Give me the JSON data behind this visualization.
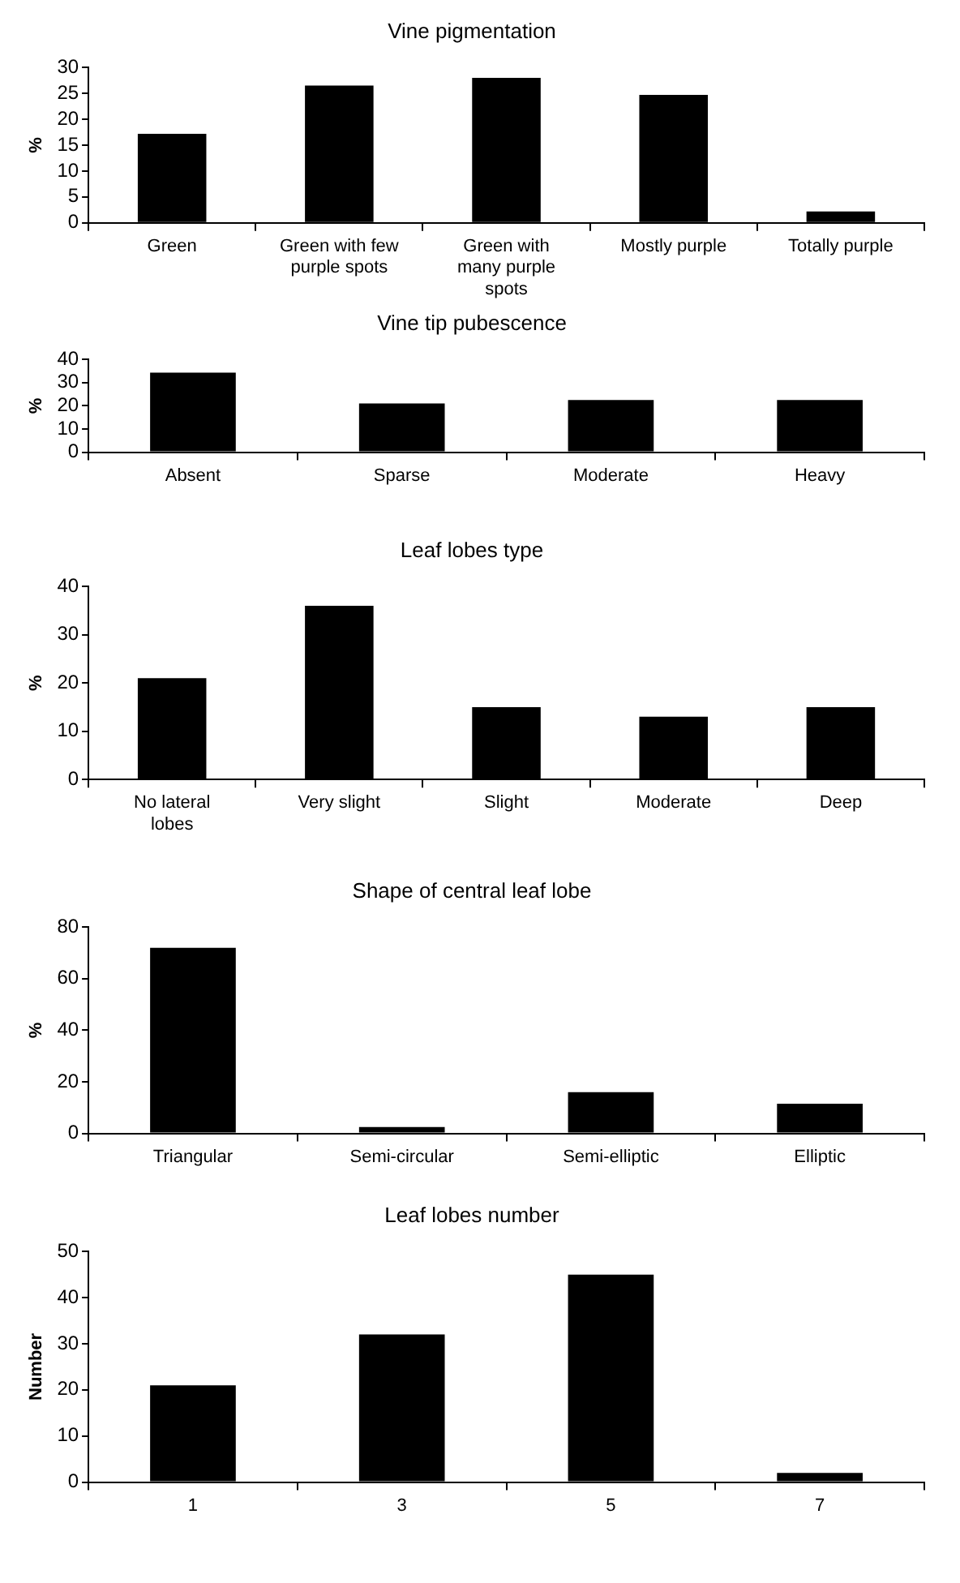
{
  "chart_data": [
    {
      "type": "bar",
      "title": "Vine pigmentation",
      "ylabel": "%",
      "categories": [
        "Green",
        "Green with few purple spots",
        "Green with many purple spots",
        "Mostly purple",
        "Totally purple"
      ],
      "values": [
        17.2,
        26.5,
        28,
        24.7,
        2.2
      ],
      "color": "#000000",
      "ylim": [
        0,
        30
      ],
      "yticks": [
        0,
        5,
        10,
        15,
        20,
        25,
        30
      ],
      "grid": false,
      "legend": false
    },
    {
      "type": "bar",
      "title": "Vine tip pubescence",
      "ylabel": "%",
      "categories": [
        "Absent",
        "Sparse",
        "Moderate",
        "Heavy"
      ],
      "values": [
        34.3,
        21,
        22.5,
        22.5
      ],
      "color": "#000000",
      "ylim": [
        0,
        40
      ],
      "yticks": [
        0,
        10,
        20,
        30,
        40
      ],
      "grid": false,
      "legend": false
    },
    {
      "type": "bar",
      "title": "Leaf lobes type",
      "ylabel": "%",
      "categories": [
        "No lateral lobes",
        "Very slight",
        "Slight",
        "Moderate",
        "Deep"
      ],
      "values": [
        21,
        36,
        15,
        13,
        15
      ],
      "color": "#000000",
      "ylim": [
        0,
        40
      ],
      "yticks": [
        0,
        10,
        20,
        30,
        40
      ],
      "grid": false,
      "legend": false
    },
    {
      "type": "bar",
      "title": "Shape of central leaf lobe",
      "ylabel": "%",
      "categories": [
        "Triangular",
        "Semi-circular",
        "Semi-elliptic",
        "Elliptic"
      ],
      "values": [
        72,
        2.5,
        16,
        11.5
      ],
      "color": "#000000",
      "ylim": [
        0,
        80
      ],
      "yticks": [
        0,
        20,
        40,
        60,
        80
      ],
      "grid": false,
      "legend": false
    },
    {
      "type": "bar",
      "title": "Leaf lobes number",
      "ylabel": "Number",
      "categories": [
        "1",
        "3",
        "5",
        "7"
      ],
      "values": [
        21,
        32,
        45,
        2
      ],
      "color": "#000000",
      "ylim": [
        0,
        50
      ],
      "yticks": [
        0,
        10,
        20,
        30,
        40,
        50
      ],
      "grid": false,
      "legend": false
    }
  ]
}
